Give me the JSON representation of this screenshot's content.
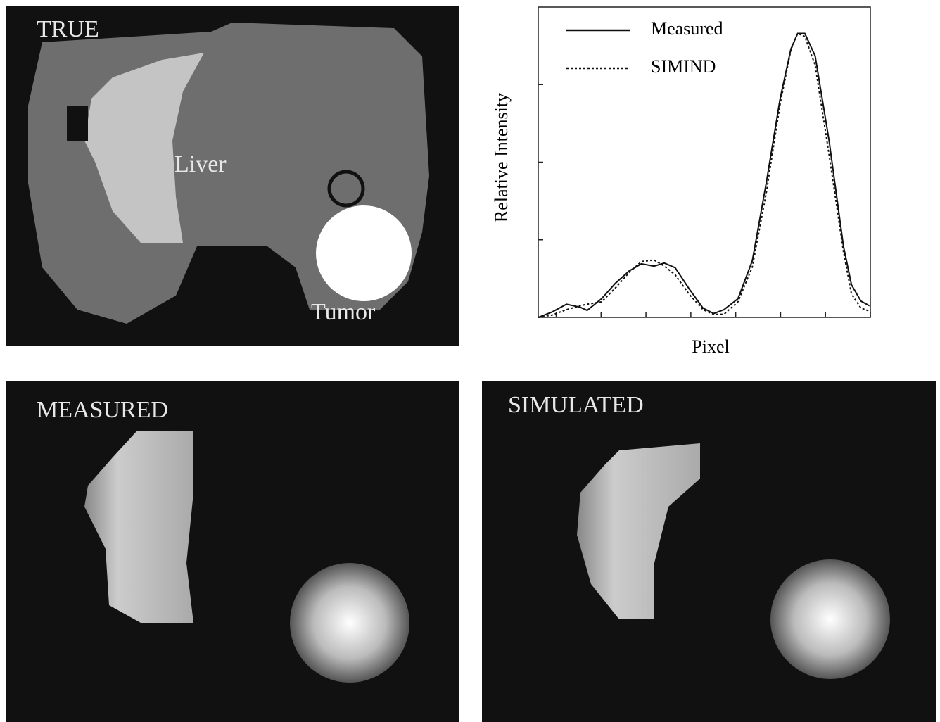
{
  "panels": [
    {
      "label": "TRUE",
      "annotations": [
        "Liver",
        "Tumor"
      ]
    },
    {
      "label": "MEASURED"
    },
    {
      "label": "SIMULATED"
    }
  ],
  "chart_data": {
    "type": "line",
    "ylabel": "Relative Intensity",
    "xlabel": "Pixel",
    "x": [
      -0.4,
      -0.09,
      0.23,
      0.54,
      0.69,
      1.01,
      1.32,
      1.63,
      1.9,
      2.18,
      2.41,
      2.65,
      2.96,
      3.27,
      3.51,
      3.74,
      4.05,
      4.37,
      4.68,
      4.99,
      5.23,
      5.38,
      5.54,
      5.77,
      6.08,
      6.4,
      6.58,
      6.79,
      6.98
    ],
    "series": [
      {
        "name": "Measured",
        "color": "#111111",
        "dash": "solid",
        "values": [
          0,
          0.07,
          0.17,
          0.13,
          0.09,
          0.24,
          0.44,
          0.6,
          0.69,
          0.66,
          0.7,
          0.64,
          0.37,
          0.12,
          0.05,
          0.1,
          0.24,
          0.73,
          1.73,
          2.82,
          3.46,
          3.66,
          3.66,
          3.37,
          2.28,
          0.92,
          0.42,
          0.21,
          0.15
        ]
      },
      {
        "name": "SIMIND",
        "color": "#111111",
        "dash": "dotted",
        "values": [
          0,
          0.03,
          0.1,
          0.15,
          0.17,
          0.2,
          0.38,
          0.58,
          0.72,
          0.74,
          0.66,
          0.55,
          0.3,
          0.1,
          0.04,
          0.04,
          0.2,
          0.65,
          1.6,
          2.75,
          3.45,
          3.66,
          3.62,
          3.25,
          2.1,
          0.85,
          0.3,
          0.12,
          0.08
        ]
      }
    ],
    "xlim": [
      -0.4,
      7
    ],
    "ylim": [
      0,
      4
    ],
    "xticks": [
      0,
      1,
      2,
      3,
      4,
      5,
      6,
      7
    ],
    "yticks": [
      1,
      2,
      3
    ],
    "legend": "upper-left"
  }
}
